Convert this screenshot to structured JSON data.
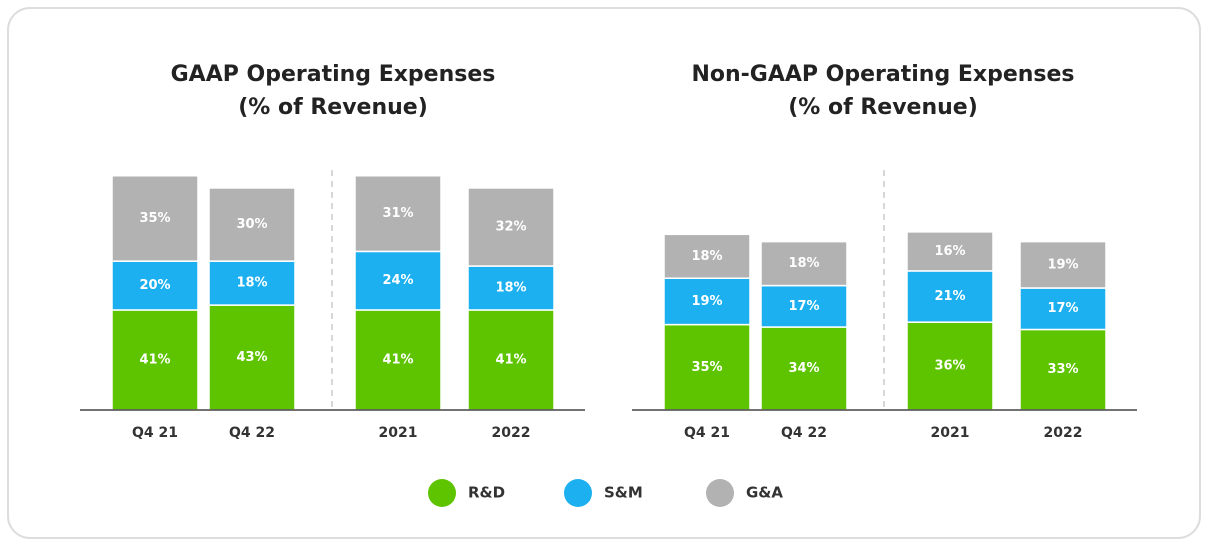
{
  "chart_data": [
    {
      "type": "stacked_bar",
      "title": "GAAP Operating Expenses",
      "subtitle": "(% of Revenue)",
      "categories": [
        "Q4 21",
        "Q4 22",
        "2021",
        "2022"
      ],
      "ylim": [
        0,
        100
      ],
      "series": [
        {
          "values": [
            41,
            43,
            41,
            41
          ],
          "value_labels": [
            "41%",
            "43%",
            "41%",
            "41%"
          ]
        },
        {
          "values": [
            20,
            18,
            24,
            18
          ],
          "value_labels": [
            "20%",
            "18%",
            "24%",
            "18%"
          ]
        },
        {
          "values": [
            35,
            30,
            31,
            32
          ],
          "value_labels": [
            "35%",
            "30%",
            "31%",
            "32%"
          ]
        }
      ]
    },
    {
      "type": "stacked_bar",
      "title": "Non-GAAP Operating Expenses",
      "subtitle": "(% of Revenue)",
      "categories": [
        "Q4 21",
        "Q4 22",
        "2021",
        "2022"
      ],
      "ylim": [
        0,
        100
      ],
      "series": [
        {
          "values": [
            35,
            34,
            36,
            33
          ],
          "value_labels": [
            "35%",
            "34%",
            "36%",
            "33%"
          ]
        },
        {
          "values": [
            19,
            17,
            21,
            17
          ],
          "value_labels": [
            "19%",
            "17%",
            "21%",
            "17%"
          ]
        },
        {
          "values": [
            18,
            18,
            16,
            19
          ],
          "value_labels": [
            "18%",
            "18%",
            "16%",
            "19%"
          ]
        }
      ]
    }
  ],
  "legend": [
    {
      "name": "R&D",
      "color": "#5ec400"
    },
    {
      "name": "S&M",
      "color": "#1cb0f0"
    },
    {
      "name": "G&A",
      "color": "#b2b2b2"
    }
  ]
}
